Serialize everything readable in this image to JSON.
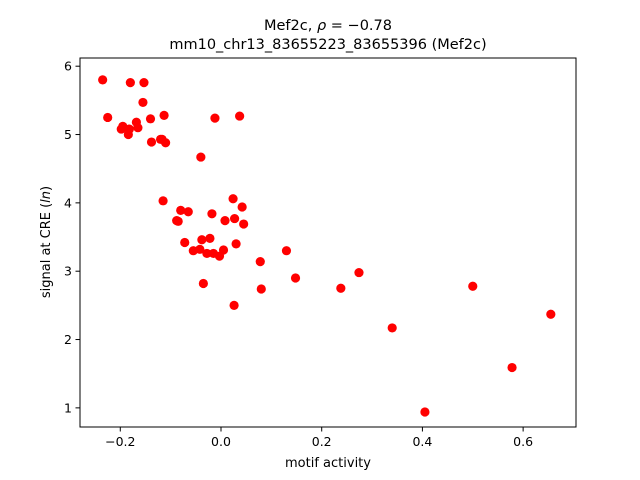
{
  "chart_data": {
    "type": "scatter",
    "title_line1_prefix": "Mef2c, ",
    "title_line1_rho": "ρ",
    "title_line1_suffix": " = −0.78",
    "title_line2": "mm10_chr13_83655223_83655396 (Mef2c)",
    "xlabel": "motif activity",
    "ylabel_prefix": "signal at CRE (",
    "ylabel_italic": "ln",
    "ylabel_suffix": ")",
    "xlim": [
      -0.28,
      0.705
    ],
    "ylim": [
      0.72,
      6.12
    ],
    "xticks": [
      -0.2,
      0.0,
      0.2,
      0.4,
      0.6
    ],
    "xtick_labels": [
      "−0.2",
      "0.0",
      "0.2",
      "0.4",
      "0.6"
    ],
    "yticks": [
      1,
      2,
      3,
      4,
      5,
      6
    ],
    "ytick_labels": [
      "1",
      "2",
      "3",
      "4",
      "5",
      "6"
    ],
    "grid": false,
    "marker_color": "#ff0000",
    "x": [
      -0.235,
      -0.225,
      -0.198,
      -0.195,
      -0.184,
      -0.182,
      -0.18,
      -0.168,
      -0.165,
      -0.155,
      -0.153,
      -0.14,
      -0.138,
      -0.12,
      -0.117,
      -0.113,
      -0.11,
      -0.04,
      -0.012,
      0.037,
      -0.115,
      -0.088,
      -0.085,
      -0.08,
      -0.072,
      -0.065,
      -0.055,
      -0.042,
      -0.038,
      -0.035,
      -0.028,
      -0.022,
      -0.018,
      -0.015,
      -0.003,
      0.005,
      0.008,
      0.024,
      0.027,
      0.03,
      0.042,
      0.045,
      0.078,
      0.08,
      0.13,
      0.148,
      0.238,
      0.274,
      0.34,
      0.405,
      0.5,
      0.578,
      0.655,
      0.026
    ],
    "y": [
      5.8,
      5.25,
      5.08,
      5.12,
      5.0,
      5.08,
      5.76,
      5.18,
      5.1,
      5.47,
      5.76,
      5.23,
      4.89,
      4.93,
      4.93,
      5.28,
      4.88,
      4.67,
      5.24,
      5.27,
      4.03,
      3.74,
      3.73,
      3.89,
      3.42,
      3.87,
      3.3,
      3.32,
      3.46,
      2.82,
      3.26,
      3.48,
      3.84,
      3.26,
      3.22,
      3.31,
      3.74,
      4.06,
      3.77,
      3.4,
      3.94,
      3.69,
      3.14,
      2.74,
      3.3,
      2.9,
      2.75,
      2.98,
      2.17,
      0.94,
      2.78,
      1.59,
      2.37,
      2.5
    ]
  }
}
